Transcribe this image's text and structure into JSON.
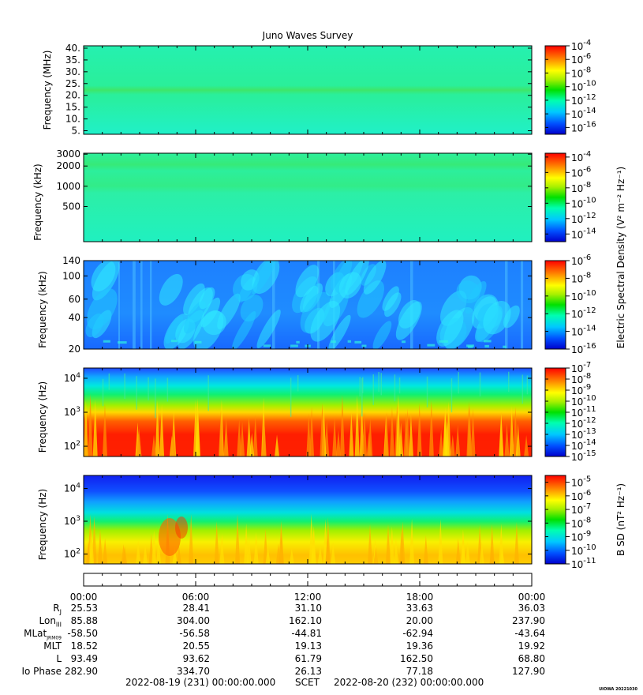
{
  "chart_data": [
    {
      "type": "heatmap",
      "title": "Juno Waves Survey",
      "ylabel": "Frequency (MHz)",
      "yticks": [
        "5.",
        "10.",
        "15.",
        "20.",
        "25.",
        "30.",
        "35.",
        "40."
      ],
      "ylim": [
        3.5,
        41
      ],
      "colorbar": {
        "range_exp": [
          -17,
          -4
        ],
        "ticks": [
          "-16",
          "-14",
          "-12",
          "-10",
          "-8",
          "-6",
          "-4"
        ]
      },
      "features": "Nearly uniform background ~1e-12 with a stronger band near 21 MHz"
    },
    {
      "type": "heatmap",
      "ylabel": "Frequency (kHz)",
      "yticks": [
        "500",
        "1000",
        "2000",
        "3000"
      ],
      "ylim": [
        150,
        3100
      ],
      "yscale": "log",
      "colorbar": {
        "range_exp": [
          -15,
          -3.5
        ],
        "ticks": [
          "-14",
          "-12",
          "-10",
          "-8",
          "-6",
          "-4"
        ]
      },
      "features": "Uniform background with weak bands near 1000 and 2000 kHz"
    },
    {
      "type": "heatmap",
      "ylabel": "Frequency (kHz)",
      "yticks": [
        "20",
        "40",
        "60",
        "100",
        "140"
      ],
      "ylim": [
        20,
        140
      ],
      "colorbar": {
        "range_exp": [
          -16,
          -6
        ],
        "ticks": [
          "-16",
          "-14",
          "-12",
          "-10",
          "-8",
          "-6"
        ]
      },
      "features": "Blue background with drifting cyan emission streaks"
    },
    {
      "type": "heatmap",
      "ylabel": "Frequency (Hz)",
      "yticks": [
        "10^2",
        "10^3",
        "10^4"
      ],
      "ylim": [
        50,
        20000
      ],
      "yscale": "log",
      "colorbar": {
        "range_exp": [
          -15,
          -7
        ],
        "ticks": [
          "-15",
          "-14",
          "-13",
          "-12",
          "-11",
          "-10",
          "-9",
          "-8",
          "-7"
        ]
      },
      "features": "Intense (red) emission below ~1 kHz, green/cyan above, blue near 10 kHz"
    },
    {
      "type": "heatmap",
      "ylabel": "Frequency (Hz)",
      "yticks": [
        "10^2",
        "10^3",
        "10^4"
      ],
      "ylim": [
        50,
        25000
      ],
      "yscale": "log",
      "colorbar": {
        "range_exp": [
          -11,
          -4.5
        ],
        "ticks": [
          "-11",
          "-10",
          "-9",
          "-8",
          "-7",
          "-6",
          "-5"
        ]
      },
      "features": "Magnetic spectral density: yellow/orange below ~500 Hz, green to ~1 kHz, blue above"
    }
  ],
  "colorbar_label_electric": "Electric Spectral Density (V² m⁻² Hz⁻¹)",
  "colorbar_label_magnetic": "B SD (nT² Hz⁻¹)",
  "time_axis": {
    "ticks": [
      "00:00",
      "06:00",
      "12:00",
      "18:00",
      "00:00"
    ]
  },
  "ephemeris": {
    "labels": [
      "R",
      "Lon",
      "MLat",
      "MLT",
      "L",
      "Io Phase"
    ],
    "label_subs": [
      "J",
      "III",
      "JRM09",
      "",
      "",
      ""
    ],
    "rows": [
      [
        "25.53",
        "28.41",
        "31.10",
        "33.63",
        "36.03"
      ],
      [
        "85.88",
        "304.00",
        "162.10",
        "20.00",
        "237.90"
      ],
      [
        "-58.50",
        "-56.58",
        "-44.81",
        "-62.94",
        "-43.64"
      ],
      [
        "18.52",
        "20.55",
        "19.13",
        "19.36",
        "19.92"
      ],
      [
        "93.49",
        "93.62",
        "61.79",
        "162.50",
        "68.80"
      ],
      [
        "282.90",
        "334.70",
        "26.13",
        "77.18",
        "127.90"
      ]
    ]
  },
  "footer": {
    "start": "2022-08-19 (231) 00:00:00.000",
    "scet": "SCET",
    "end": "2022-08-20 (232) 00:00:00.000"
  },
  "stamp": "UIOWA 20221030"
}
